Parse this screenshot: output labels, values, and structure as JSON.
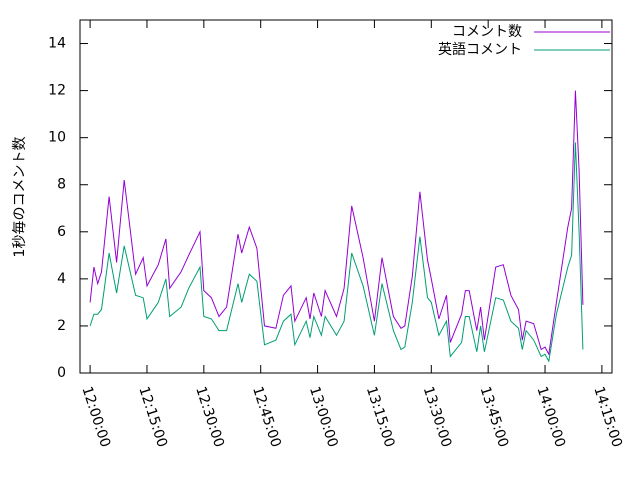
{
  "chart_data": {
    "type": "line",
    "ylabel": "1秒毎のコメント数",
    "x": [
      "12:00:00",
      "12:01:00",
      "12:02:00",
      "12:03:00",
      "12:05:00",
      "12:07:00",
      "12:09:00",
      "12:12:00",
      "12:14:00",
      "12:15:00",
      "12:18:00",
      "12:20:00",
      "12:21:00",
      "12:24:00",
      "12:26:00",
      "12:29:00",
      "12:30:00",
      "12:32:00",
      "12:34:00",
      "12:36:00",
      "12:39:00",
      "12:40:00",
      "12:42:00",
      "12:44:00",
      "12:46:00",
      "12:49:00",
      "12:51:00",
      "12:53:00",
      "12:54:00",
      "12:57:00",
      "12:58:00",
      "12:59:00",
      "13:01:00",
      "13:02:00",
      "13:05:00",
      "13:07:00",
      "13:09:00",
      "13:12:00",
      "13:15:00",
      "13:17:00",
      "13:20:00",
      "13:22:00",
      "13:23:00",
      "13:25:00",
      "13:27:00",
      "13:29:00",
      "13:30:00",
      "13:32:00",
      "13:34:00",
      "13:35:00",
      "13:38:00",
      "13:39:00",
      "13:40:00",
      "13:42:00",
      "13:43:00",
      "13:44:00",
      "13:47:00",
      "13:49:00",
      "13:51:00",
      "13:53:00",
      "13:54:00",
      "13:55:00",
      "13:57:00",
      "13:59:00",
      "14:00:00",
      "14:01:00",
      "14:03:00",
      "14:06:00",
      "14:07:00",
      "14:08:00",
      "14:09:00",
      "14:10:00"
    ],
    "series": [
      {
        "name": "コメント数",
        "color": "#9400d3",
        "values": [
          3.0,
          4.5,
          3.8,
          4.3,
          7.5,
          4.7,
          8.2,
          4.2,
          4.9,
          3.7,
          4.6,
          5.7,
          3.6,
          4.3,
          5.0,
          6.0,
          3.5,
          3.2,
          2.4,
          2.8,
          5.9,
          5.1,
          6.2,
          5.3,
          2.0,
          1.9,
          3.3,
          3.7,
          2.2,
          3.2,
          2.3,
          3.4,
          2.4,
          3.5,
          2.4,
          3.6,
          7.1,
          4.9,
          2.2,
          4.9,
          2.4,
          1.9,
          2.0,
          4.1,
          7.7,
          4.8,
          4.0,
          2.3,
          3.3,
          1.3,
          2.5,
          3.5,
          3.5,
          1.8,
          2.8,
          1.4,
          4.5,
          4.6,
          3.3,
          2.7,
          1.4,
          2.2,
          2.1,
          1.0,
          1.1,
          0.8,
          3.0,
          6.2,
          7.0,
          12.0,
          8.6,
          2.9
        ]
      },
      {
        "name": "英語コメント",
        "color": "#009e73",
        "values": [
          2.0,
          2.5,
          2.5,
          2.7,
          5.1,
          3.4,
          5.4,
          3.3,
          3.2,
          2.3,
          3.0,
          4.0,
          2.4,
          2.8,
          3.6,
          4.5,
          2.4,
          2.3,
          1.8,
          1.8,
          3.8,
          3.0,
          4.2,
          3.9,
          1.2,
          1.4,
          2.2,
          2.5,
          1.2,
          2.2,
          1.5,
          2.4,
          1.6,
          2.4,
          1.6,
          2.2,
          5.1,
          3.7,
          1.6,
          3.8,
          1.8,
          1.0,
          1.1,
          3.0,
          5.8,
          3.2,
          3.0,
          1.6,
          2.2,
          0.7,
          1.3,
          2.4,
          2.4,
          0.9,
          2.0,
          0.9,
          3.2,
          3.1,
          2.2,
          1.9,
          1.0,
          1.8,
          1.4,
          0.7,
          0.8,
          0.5,
          2.5,
          4.5,
          5.0,
          9.8,
          6.0,
          1.0
        ]
      }
    ],
    "xlim": [
      "11:57:20",
      "14:17:40"
    ],
    "xticks": [
      "12:00:00",
      "12:15:00",
      "12:30:00",
      "12:45:00",
      "13:00:00",
      "13:15:00",
      "13:30:00",
      "13:45:00",
      "14:00:00",
      "14:15:00"
    ],
    "ylim": [
      0,
      15
    ],
    "yticks": [
      0,
      2,
      4,
      6,
      8,
      10,
      12,
      14
    ],
    "legend": "top-right"
  }
}
